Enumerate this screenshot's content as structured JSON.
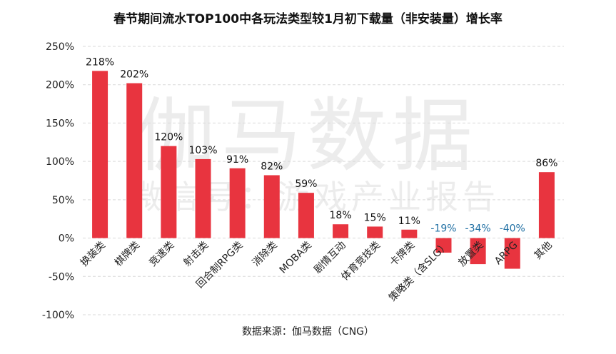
{
  "chart_data": {
    "type": "bar",
    "title": "春节期间流水TOP100中各玩法类型较1月初下载量（非安装量）增长率",
    "categories": [
      "换装类",
      "棋牌类",
      "竞速类",
      "射击类",
      "回合制RPG类",
      "消除类",
      "MOBA类",
      "剧情互动",
      "体育竞技类",
      "卡牌类",
      "策略类（含SLG）",
      "放置类",
      "ARPG",
      "其他"
    ],
    "values": [
      218,
      202,
      120,
      103,
      91,
      82,
      59,
      18,
      15,
      11,
      -19,
      -34,
      -40,
      86
    ],
    "value_labels": [
      "218%",
      "202%",
      "120%",
      "103%",
      "91%",
      "82%",
      "59%",
      "18%",
      "15%",
      "11%",
      "-19%",
      "-34%",
      "-40%",
      "86%"
    ],
    "ylim": [
      -100,
      250
    ],
    "yticks": [
      -100,
      -50,
      0,
      50,
      100,
      150,
      200,
      250
    ],
    "ytick_labels": [
      "-100%",
      "-50%",
      "0%",
      "50%",
      "100%",
      "150%",
      "200%",
      "250%"
    ],
    "xlabel": "",
    "ylabel": "",
    "grid": true,
    "legend": "none",
    "colors": {
      "bar": "#E8343F",
      "positive_label": "#111111",
      "negative_label": "#1F6FA3",
      "grid": "#d9d9d9",
      "axis_text": "#222222"
    }
  },
  "watermark": {
    "main": "伽马数据",
    "sub": "微信号：游戏产业报告"
  },
  "source": "数据来源：伽马数据（CNG）"
}
